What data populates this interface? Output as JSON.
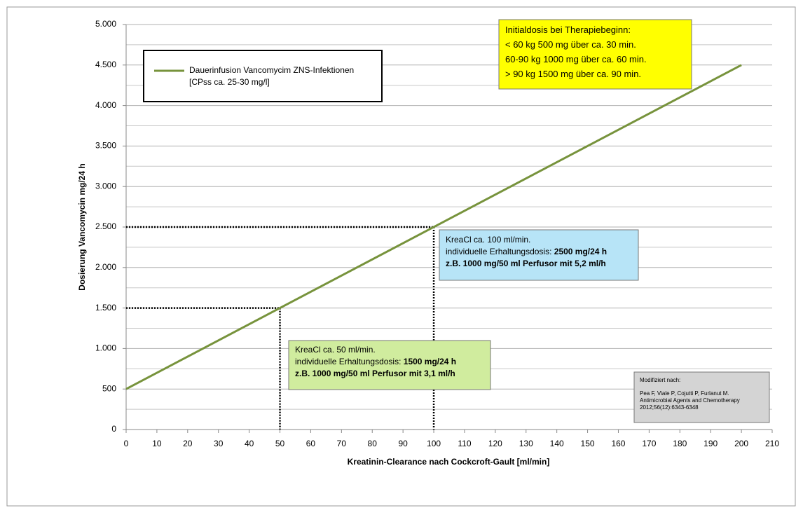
{
  "chart_data": {
    "type": "line",
    "x_label": "Kreatinin-Clearance nach Cockcroft-Gault [ml/min]",
    "y_label": "Dosierung Vancomycin mg/24 h",
    "x": [
      0,
      200
    ],
    "series": [
      {
        "name": "Dauerinfusion Vancomycim ZNS-Infektionen",
        "color": "#77933c",
        "values": [
          500,
          4500
        ]
      }
    ],
    "legend_note": "[CPss ca. 25-30 mg/l]",
    "xlim": [
      0,
      210
    ],
    "xticks": [
      0,
      10,
      20,
      30,
      40,
      50,
      60,
      70,
      80,
      90,
      100,
      110,
      120,
      130,
      140,
      150,
      160,
      170,
      180,
      190,
      200,
      210
    ],
    "ylim": [
      0,
      5000
    ],
    "yticks": [
      0,
      500,
      {
        "value": 1000,
        "label": "1.000"
      },
      {
        "value": 1500,
        "label": "1.500"
      },
      {
        "value": 2000,
        "label": "2.000"
      },
      {
        "value": 2500,
        "label": "2.500"
      },
      {
        "value": 3000,
        "label": "3.000"
      },
      {
        "value": 3500,
        "label": "3.500"
      },
      {
        "value": 4000,
        "label": "4.000"
      },
      {
        "value": 4500,
        "label": "4.500"
      },
      {
        "value": 5000,
        "label": "5.000"
      }
    ],
    "y_minor_grid": [
      250,
      750,
      1250,
      1750,
      2250,
      2750,
      3250,
      3750,
      4250,
      4750
    ],
    "grid": true,
    "reference_points": [
      {
        "x": 50,
        "y": 1500
      },
      {
        "x": 100,
        "y": 2500
      }
    ],
    "annotations": [
      {
        "color": "#ffff00",
        "lines": [
          [
            {
              "text": "Initialdosis bei Therapiebeginn:",
              "bold": false
            }
          ],
          [
            {
              "text": "< 60 kg 500 mg über ca. 30 min.",
              "bold": false
            }
          ],
          [
            {
              "text": "60-90 kg 1000 mg über ca. 60 min.",
              "bold": false
            }
          ],
          [
            {
              "text": "> 90 kg 1500 mg über ca. 90 min.",
              "bold": false
            }
          ]
        ]
      },
      {
        "color": "#b7e4f7",
        "lines": [
          [
            {
              "text": "KreaCl ca. 100 ml/min.",
              "bold": false
            }
          ],
          [
            {
              "text": "individuelle Erhaltungsdosis: ",
              "bold": false
            },
            {
              "text": "2500 mg/24 h",
              "bold": true
            }
          ],
          [
            {
              "text": "z.B. 1000 mg/50 ml Perfusor mit 5,2 ml/h",
              "bold": true
            }
          ]
        ]
      },
      {
        "color": "#d0ec9e",
        "lines": [
          [
            {
              "text": "KreaCl ca. 50 ml/min.",
              "bold": false
            }
          ],
          [
            {
              "text": "individuelle Erhaltungsdosis: ",
              "bold": false
            },
            {
              "text": "1500 mg/24 h",
              "bold": true
            }
          ],
          [
            {
              "text": "z.B. 1000 mg/50 ml Perfusor mit 3,1 ml/h",
              "bold": true
            }
          ]
        ]
      },
      {
        "color": "#d4d4d4",
        "lines": [
          [
            {
              "text": "Modifiziert nach:",
              "bold": false
            }
          ],
          [
            {
              "text": "Pea F, Viale P, Cojutti P, Furlanut M.",
              "bold": false
            }
          ],
          [
            {
              "text": "Antimicrobial Agents and Chemotherapy",
              "bold": false
            }
          ],
          [
            {
              "text": "2012;56(12):6343-6348",
              "bold": false
            }
          ]
        ]
      }
    ]
  }
}
